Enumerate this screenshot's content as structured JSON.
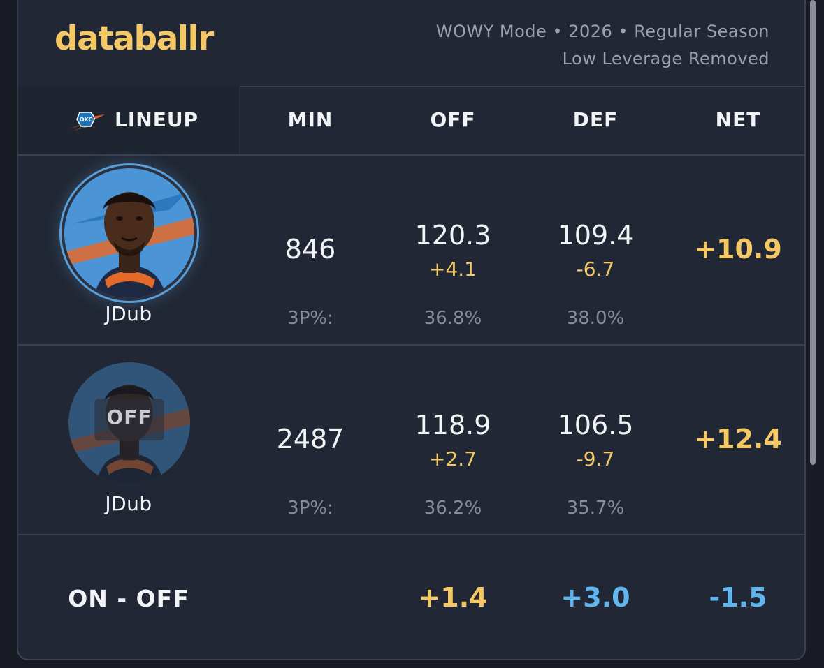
{
  "brand": {
    "name": "databallr"
  },
  "meta": {
    "line1": "WOWY Mode • 2026 • Regular Season",
    "line2": "Low Leverage Removed"
  },
  "columns": {
    "lineup": "LINEUP",
    "min": "MIN",
    "off": "OFF",
    "def": "DEF",
    "net": "NET"
  },
  "rows": [
    {
      "player": "JDub",
      "status": "on",
      "min": "846",
      "off": "120.3",
      "off_delta": "+4.1",
      "def": "109.4",
      "def_delta": "-6.7",
      "net": "+10.9",
      "threep_label": "3P%:",
      "off_3p": "36.8%",
      "def_3p": "38.0%"
    },
    {
      "player": "JDub",
      "status": "off",
      "off_badge": "OFF",
      "min": "2487",
      "off": "118.9",
      "off_delta": "+2.7",
      "def": "106.5",
      "def_delta": "-9.7",
      "net": "+12.4",
      "threep_label": "3P%:",
      "off_3p": "36.2%",
      "def_3p": "35.7%"
    }
  ],
  "on_off": {
    "label": "ON - OFF",
    "off": "+1.4",
    "def": "+3.0",
    "net": "-1.5"
  },
  "colors": {
    "accent_gold": "#f3c865",
    "accent_blue": "#5fb6ef",
    "background": "#212734",
    "text": "#f2f3f5",
    "muted": "#868d9a"
  },
  "icons": {
    "team_logo": "okc-thunder-logo-icon"
  }
}
